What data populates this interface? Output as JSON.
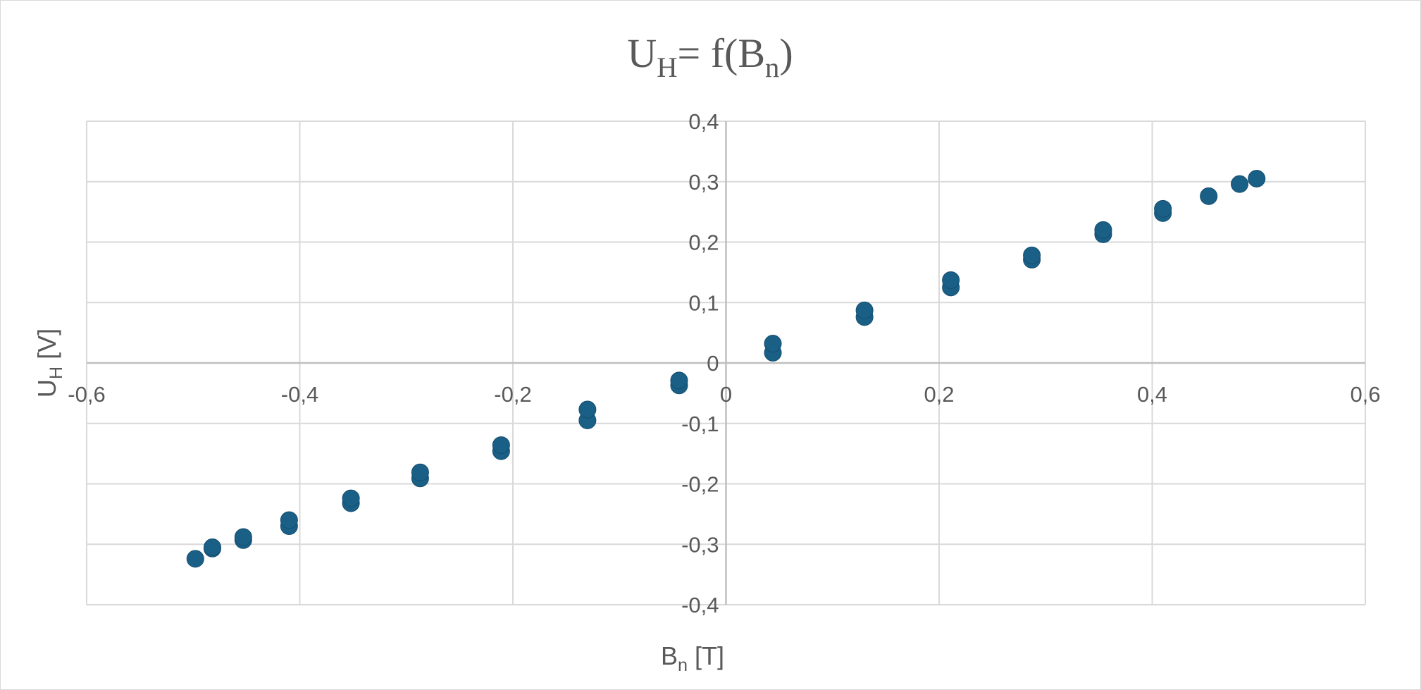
{
  "chart_data": {
    "type": "scatter",
    "title": {
      "main": "U",
      "sub": "H",
      "rest": "= f(B",
      "sub2": "n",
      "end": ")"
    },
    "xlabel": {
      "main": "B",
      "sub": "n",
      "rest": " [T]"
    },
    "ylabel": {
      "main": "U",
      "sub": "H",
      "rest": " [V]"
    },
    "xlim": [
      -0.6,
      0.6
    ],
    "ylim": [
      -0.4,
      0.4
    ],
    "x_ticks": [
      "-0,6",
      "-0,4",
      "-0,2",
      "0",
      "0,2",
      "0,4",
      "0,6"
    ],
    "y_ticks": [
      "0,4",
      "0,3",
      "0,2",
      "0,1",
      "0",
      "-0,1",
      "-0,2",
      "-0,3",
      "-0,4"
    ],
    "grid": true,
    "marker_color": "#1a5f86",
    "series": [
      {
        "name": "U_H",
        "points": [
          [
            -0.498,
            -0.324
          ],
          [
            -0.482,
            -0.307
          ],
          [
            -0.482,
            -0.305
          ],
          [
            -0.453,
            -0.293
          ],
          [
            -0.453,
            -0.288
          ],
          [
            -0.41,
            -0.27
          ],
          [
            -0.41,
            -0.26
          ],
          [
            -0.352,
            -0.232
          ],
          [
            -0.352,
            -0.224
          ],
          [
            -0.287,
            -0.191
          ],
          [
            -0.287,
            -0.181
          ],
          [
            -0.211,
            -0.146
          ],
          [
            -0.211,
            -0.136
          ],
          [
            -0.13,
            -0.095
          ],
          [
            -0.13,
            -0.077
          ],
          [
            -0.044,
            -0.037
          ],
          [
            -0.044,
            -0.029
          ],
          [
            0.044,
            0.017
          ],
          [
            0.044,
            0.032
          ],
          [
            0.13,
            0.076
          ],
          [
            0.13,
            0.087
          ],
          [
            0.211,
            0.125
          ],
          [
            0.211,
            0.137
          ],
          [
            0.287,
            0.171
          ],
          [
            0.287,
            0.178
          ],
          [
            0.354,
            0.213
          ],
          [
            0.354,
            0.22
          ],
          [
            0.41,
            0.248
          ],
          [
            0.41,
            0.255
          ],
          [
            0.453,
            0.276
          ],
          [
            0.482,
            0.296
          ],
          [
            0.498,
            0.305
          ]
        ]
      }
    ]
  }
}
